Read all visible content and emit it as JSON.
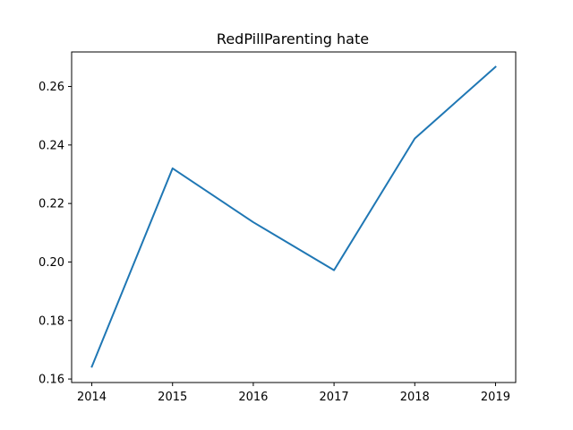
{
  "chart_data": {
    "type": "line",
    "title": "RedPillParenting hate",
    "xlabel": "",
    "ylabel": "",
    "x": [
      2014,
      2015,
      2016,
      2017,
      2018,
      2019
    ],
    "x_tick_labels": [
      "2014",
      "2015",
      "2016",
      "2017",
      "2018",
      "2019"
    ],
    "y_ticks": [
      0.16,
      0.18,
      0.2,
      0.22,
      0.24,
      0.26
    ],
    "y_tick_labels": [
      "0.16",
      "0.18",
      "0.20",
      "0.22",
      "0.24",
      "0.26"
    ],
    "xlim": [
      2013.75,
      2019.25
    ],
    "ylim": [
      0.1588,
      0.2718
    ],
    "grid": false,
    "series": [
      {
        "values": [
          0.1642,
          0.232,
          0.2136,
          0.1972,
          0.2422,
          0.2667
        ],
        "color": "#1f77b4"
      }
    ]
  }
}
